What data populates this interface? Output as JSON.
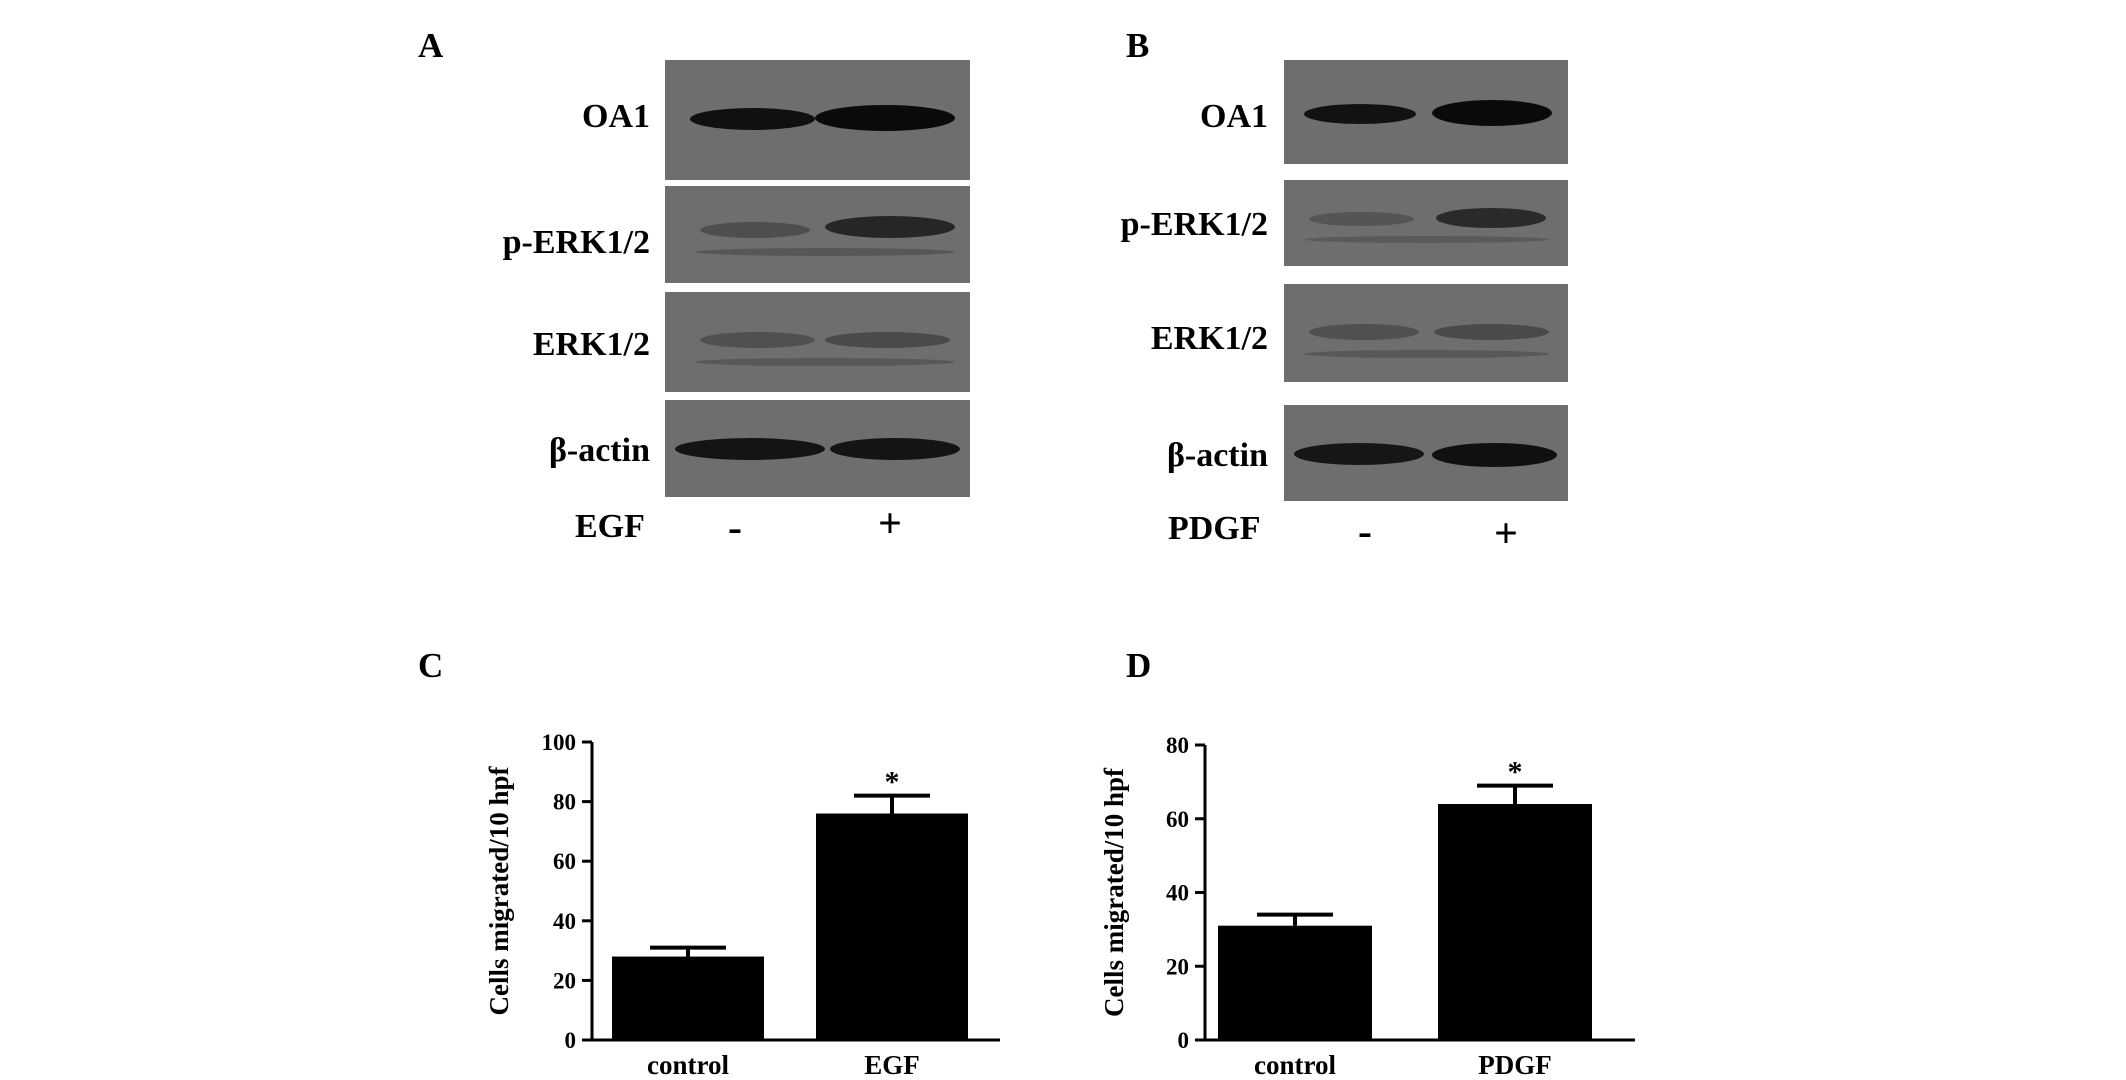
{
  "panels": {
    "A": {
      "letter": "A",
      "rows": [
        "OA1",
        "p-ERK1/2",
        "ERK1/2",
        "β-actin"
      ],
      "treatment": "EGF",
      "lanes": [
        "-",
        "+"
      ]
    },
    "B": {
      "letter": "B",
      "rows": [
        "OA1",
        "p-ERK1/2",
        "ERK1/2",
        "β-actin"
      ],
      "treatment": "PDGF",
      "lanes": [
        "-",
        "+"
      ]
    },
    "C": {
      "letter": "C"
    },
    "D": {
      "letter": "D"
    }
  },
  "colors": {
    "blot_background": "#6e6e6e",
    "bar": "#000000"
  },
  "chart_data": [
    {
      "panel": "C",
      "type": "bar",
      "categories": [
        "control",
        "EGF"
      ],
      "values": [
        28,
        76
      ],
      "errors": [
        3,
        6
      ],
      "significance": [
        "",
        "*"
      ],
      "ylabel": "Cells migrated/10 hpf",
      "ylim": [
        0,
        100
      ],
      "yticks": [
        0,
        20,
        40,
        60,
        80,
        100
      ]
    },
    {
      "panel": "D",
      "type": "bar",
      "categories": [
        "control",
        "PDGF"
      ],
      "values": [
        31,
        64
      ],
      "errors": [
        3,
        5
      ],
      "significance": [
        "",
        "*"
      ],
      "ylabel": "Cells migrated/10 hpf",
      "ylim": [
        0,
        80
      ],
      "yticks": [
        0,
        20,
        40,
        60,
        80
      ]
    }
  ]
}
